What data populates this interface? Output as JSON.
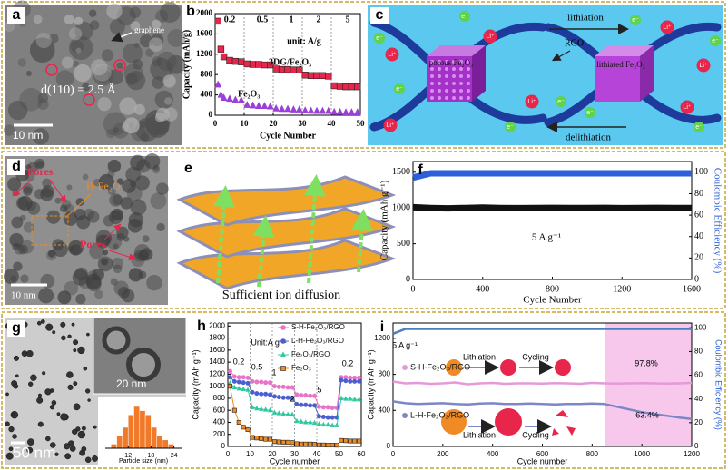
{
  "panels": {
    "a": {
      "letter": "a",
      "graphene": "graphene",
      "lattice": "d(110) = 2.5 Å",
      "scale_bar": "10 nm"
    },
    "c": {
      "letter": "c",
      "lithiation": "lithiation",
      "delithiation": "delithiation",
      "rgo": "RGO",
      "porous": "porous Fe₂O₃",
      "lithiated": "lithiated Fe₂O₃",
      "li_ion": "Li⁺",
      "electron": "e⁻"
    },
    "d": {
      "letter": "d",
      "pores": "Pores",
      "h_fe2o3": "H-Fe₂O₃",
      "scale_bar": "10 nm"
    },
    "e": {
      "letter": "e",
      "caption": "Sufficient ion diffusion"
    },
    "g": {
      "letter": "g",
      "inset_scale": "20 nm",
      "scale_bar": "50 nm"
    }
  },
  "chart_data": [
    {
      "type": "scatter",
      "panel": "b",
      "xlabel": "Cycle Number",
      "ylabel": "Capacity (mAh/g)",
      "xlim": [
        0,
        50
      ],
      "xticks": [
        0,
        10,
        20,
        30,
        40,
        50
      ],
      "ylim": [
        0,
        2000
      ],
      "yticks": [
        0,
        400,
        800,
        1200,
        1600,
        2000
      ],
      "xgrid": true,
      "annotations": [
        "0.2",
        "0.5",
        "1",
        "2",
        "5",
        "unit: A/g"
      ],
      "x": [
        1,
        2,
        3,
        5,
        7,
        9,
        11,
        13,
        15,
        17,
        19,
        21,
        23,
        25,
        27,
        29,
        31,
        33,
        35,
        37,
        39,
        41,
        43,
        45,
        47,
        49
      ],
      "series": [
        {
          "name": "3DG/Fe₂O₃",
          "color": "#e8254b",
          "marker": "square",
          "values": [
            1850,
            1300,
            1150,
            1080,
            1060,
            1050,
            1010,
            1000,
            1000,
            990,
            990,
            910,
            900,
            900,
            890,
            890,
            790,
            780,
            780,
            780,
            770,
            580,
            570,
            560,
            560,
            560
          ]
        },
        {
          "name": "Fe₂O₃",
          "color": "#9b3fd6",
          "marker": "triangle",
          "values": [
            600,
            400,
            340,
            320,
            300,
            290,
            200,
            190,
            180,
            180,
            170,
            130,
            120,
            120,
            110,
            110,
            90,
            85,
            80,
            80,
            80,
            60,
            60,
            55,
            55,
            55
          ]
        }
      ]
    },
    {
      "type": "line",
      "panel": "f",
      "xlabel": "Cycle Number",
      "ylabel": "Capacity (mAh g⁻¹)",
      "y2label": "Coulombic Efficiency (%)",
      "annotations": [
        "5 A g⁻¹"
      ],
      "xlim": [
        0,
        1600
      ],
      "xticks": [
        0,
        400,
        800,
        1200,
        1600
      ],
      "ylim": [
        0,
        1650
      ],
      "yticks": [
        0,
        500,
        1000,
        1500
      ],
      "y2lim": [
        0,
        110
      ],
      "y2ticks": [
        0,
        20,
        40,
        60,
        80,
        100
      ],
      "x": [
        1,
        100,
        200,
        300,
        400,
        500,
        600,
        700,
        800,
        900,
        1000,
        1100,
        1200,
        1300,
        1400,
        1500,
        1600
      ],
      "series": [
        {
          "color": "#111111",
          "values": [
            1010,
            1000,
            995,
            1000,
            1005,
            1000,
            998,
            1000,
            1002,
            999,
            1000,
            1001,
            998,
            1000,
            1002,
            999,
            1000
          ]
        },
        {
          "color": "#2d5fd8",
          "axis": "y2",
          "values": [
            95,
            99,
            99,
            99,
            99,
            99,
            99,
            99,
            99,
            99,
            99,
            99,
            99,
            99,
            99,
            99,
            99
          ]
        }
      ]
    },
    {
      "type": "histogram",
      "xlabel": "Particle size (nm)",
      "xlim": [
        6,
        26
      ],
      "xticks": [
        12,
        18,
        24
      ],
      "color": "#f07a2a",
      "bins": [
        7.5,
        9,
        10.5,
        12,
        13.5,
        15,
        16.5,
        18,
        19.5,
        21,
        22.5,
        24
      ],
      "values": [
        1,
        3,
        5,
        8,
        10,
        9,
        8,
        5,
        3,
        2,
        1
      ]
    },
    {
      "type": "line",
      "panel": "h",
      "xlabel": "Cycle number",
      "ylabel": "Capacity (mAh g⁻¹)",
      "xgrid": true,
      "annotations": [
        "0.2",
        "0.5",
        "1",
        "2",
        "5",
        "0.2",
        "Unit:A g⁻¹"
      ],
      "xlim": [
        0,
        60
      ],
      "xticks": [
        0,
        10,
        20,
        30,
        40,
        50,
        60
      ],
      "ylim": [
        0,
        2050
      ],
      "yticks": [
        0,
        200,
        400,
        600,
        800,
        1000,
        1200,
        1400,
        1600,
        1800,
        2000
      ],
      "x": [
        1,
        3,
        5,
        7,
        9,
        11,
        13,
        15,
        17,
        19,
        21,
        23,
        25,
        27,
        29,
        31,
        33,
        35,
        37,
        39,
        41,
        43,
        45,
        47,
        49,
        51,
        53,
        55,
        57,
        59
      ],
      "series": [
        {
          "name": "S-H-Fe₂O₃/RGO",
          "color": "#e874c8",
          "marker": "circle",
          "values": [
            1250,
            1160,
            1150,
            1150,
            1140,
            1080,
            1070,
            1070,
            1060,
            1060,
            1000,
            990,
            990,
            980,
            980,
            860,
            850,
            850,
            840,
            840,
            660,
            650,
            650,
            640,
            640,
            1150,
            1150,
            1140,
            1140,
            1140
          ]
        },
        {
          "name": "L-H-Fe₂O₃/RGO",
          "color": "#4b5fd0",
          "marker": "circle",
          "values": [
            1150,
            1080,
            1070,
            1060,
            1050,
            900,
            880,
            870,
            870,
            860,
            830,
            820,
            810,
            810,
            800,
            700,
            690,
            690,
            680,
            680,
            500,
            490,
            480,
            480,
            480,
            1100,
            1090,
            1080,
            1080,
            1080
          ]
        },
        {
          "name": "Fe₂O₃/RGO",
          "color": "#2fc8a0",
          "marker": "triangle",
          "values": [
            1050,
            980,
            960,
            950,
            940,
            650,
            630,
            620,
            610,
            600,
            560,
            550,
            540,
            530,
            530,
            420,
            410,
            400,
            400,
            390,
            370,
            360,
            360,
            350,
            350,
            800,
            790,
            790,
            780,
            780
          ]
        },
        {
          "name": "Fe₂O₃",
          "color": "#f08a24",
          "marker": "square",
          "values": [
            1000,
            600,
            400,
            320,
            280,
            150,
            140,
            130,
            120,
            120,
            80,
            75,
            70,
            70,
            65,
            45,
            40,
            40,
            40,
            38,
            25,
            25,
            22,
            22,
            20,
            100,
            95,
            90,
            90,
            90
          ]
        }
      ]
    },
    {
      "type": "line",
      "panel": "i",
      "xlabel": "Cycle number",
      "ylabel": "Capacity (mAh g⁻¹)",
      "y2label": "Coulombic Efficiency (%)",
      "annotations": [
        "5 A g⁻¹",
        "97.8%",
        "63.4%",
        "Lithiation",
        "Cycling",
        "Lithiation",
        "Cycling"
      ],
      "highlight_x": [
        850,
        1200
      ],
      "highlight_color": "#f7c8ec",
      "xlim": [
        0,
        1200
      ],
      "xticks": [
        0,
        200,
        400,
        600,
        800,
        1000,
        1200
      ],
      "ylim": [
        0,
        1370
      ],
      "yticks": [
        0,
        400,
        800,
        1200
      ],
      "y2lim": [
        0,
        104
      ],
      "y2ticks": [
        0,
        20,
        40,
        60,
        80,
        100
      ],
      "x": [
        0,
        50,
        100,
        150,
        200,
        250,
        300,
        350,
        400,
        450,
        500,
        550,
        600,
        650,
        700,
        750,
        800,
        850,
        900,
        950,
        1000,
        1050,
        1100,
        1150,
        1200
      ],
      "series": [
        {
          "name": "S-H-Fe₂O₃/RGO",
          "color": "#e59ad8",
          "values": [
            720,
            700,
            705,
            695,
            700,
            710,
            690,
            700,
            705,
            695,
            700,
            700,
            698,
            702,
            700,
            695,
            705,
            700,
            698,
            700,
            702,
            700,
            698,
            700,
            705
          ]
        },
        {
          "name": "L-H-Fe₂O₃/RGO",
          "color": "#7d86c8",
          "values": [
            500,
            480,
            470,
            475,
            480,
            470,
            465,
            475,
            480,
            470,
            470,
            475,
            470,
            465,
            470,
            470,
            475,
            470,
            440,
            410,
            380,
            360,
            340,
            320,
            305
          ]
        },
        {
          "color": "#4a7fc0",
          "axis": "y2",
          "values": [
            95,
            99,
            99,
            99,
            99,
            99,
            99,
            99,
            99,
            99,
            99,
            99,
            99,
            99,
            99,
            99,
            99,
            99,
            99,
            99,
            99,
            99,
            99,
            99,
            99
          ]
        }
      ]
    }
  ]
}
